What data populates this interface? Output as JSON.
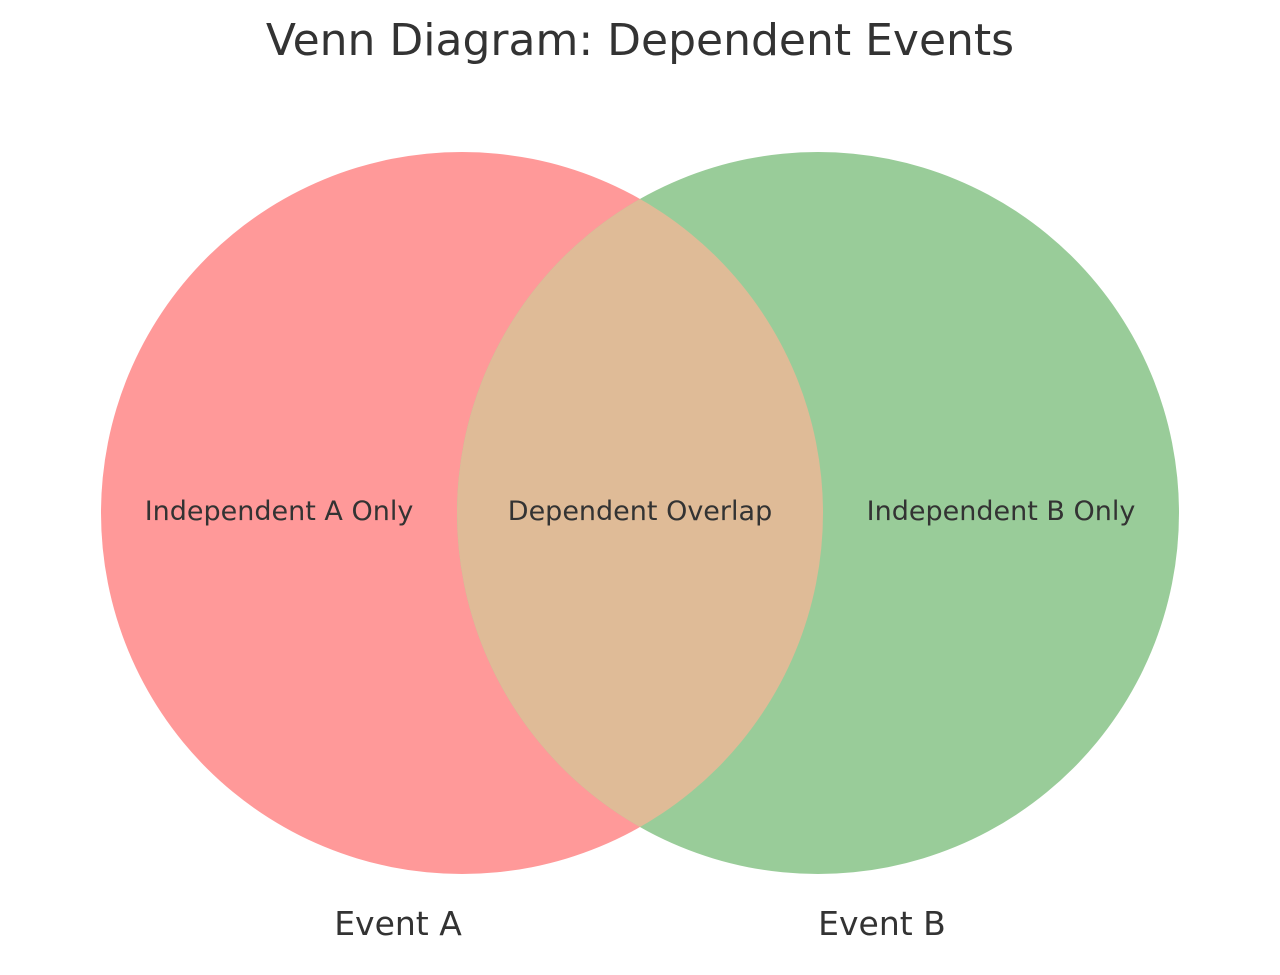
{
  "title": "Venn Diagram: Dependent Events",
  "sets": [
    {
      "label": "Event A",
      "color": "#ff9999"
    },
    {
      "label": "Event B",
      "color": "#99cc99"
    }
  ],
  "overlap_color": "#dfbb97",
  "regions": {
    "a_only": "Independent A Only",
    "overlap": "Dependent Overlap",
    "b_only": "Independent B Only"
  }
}
